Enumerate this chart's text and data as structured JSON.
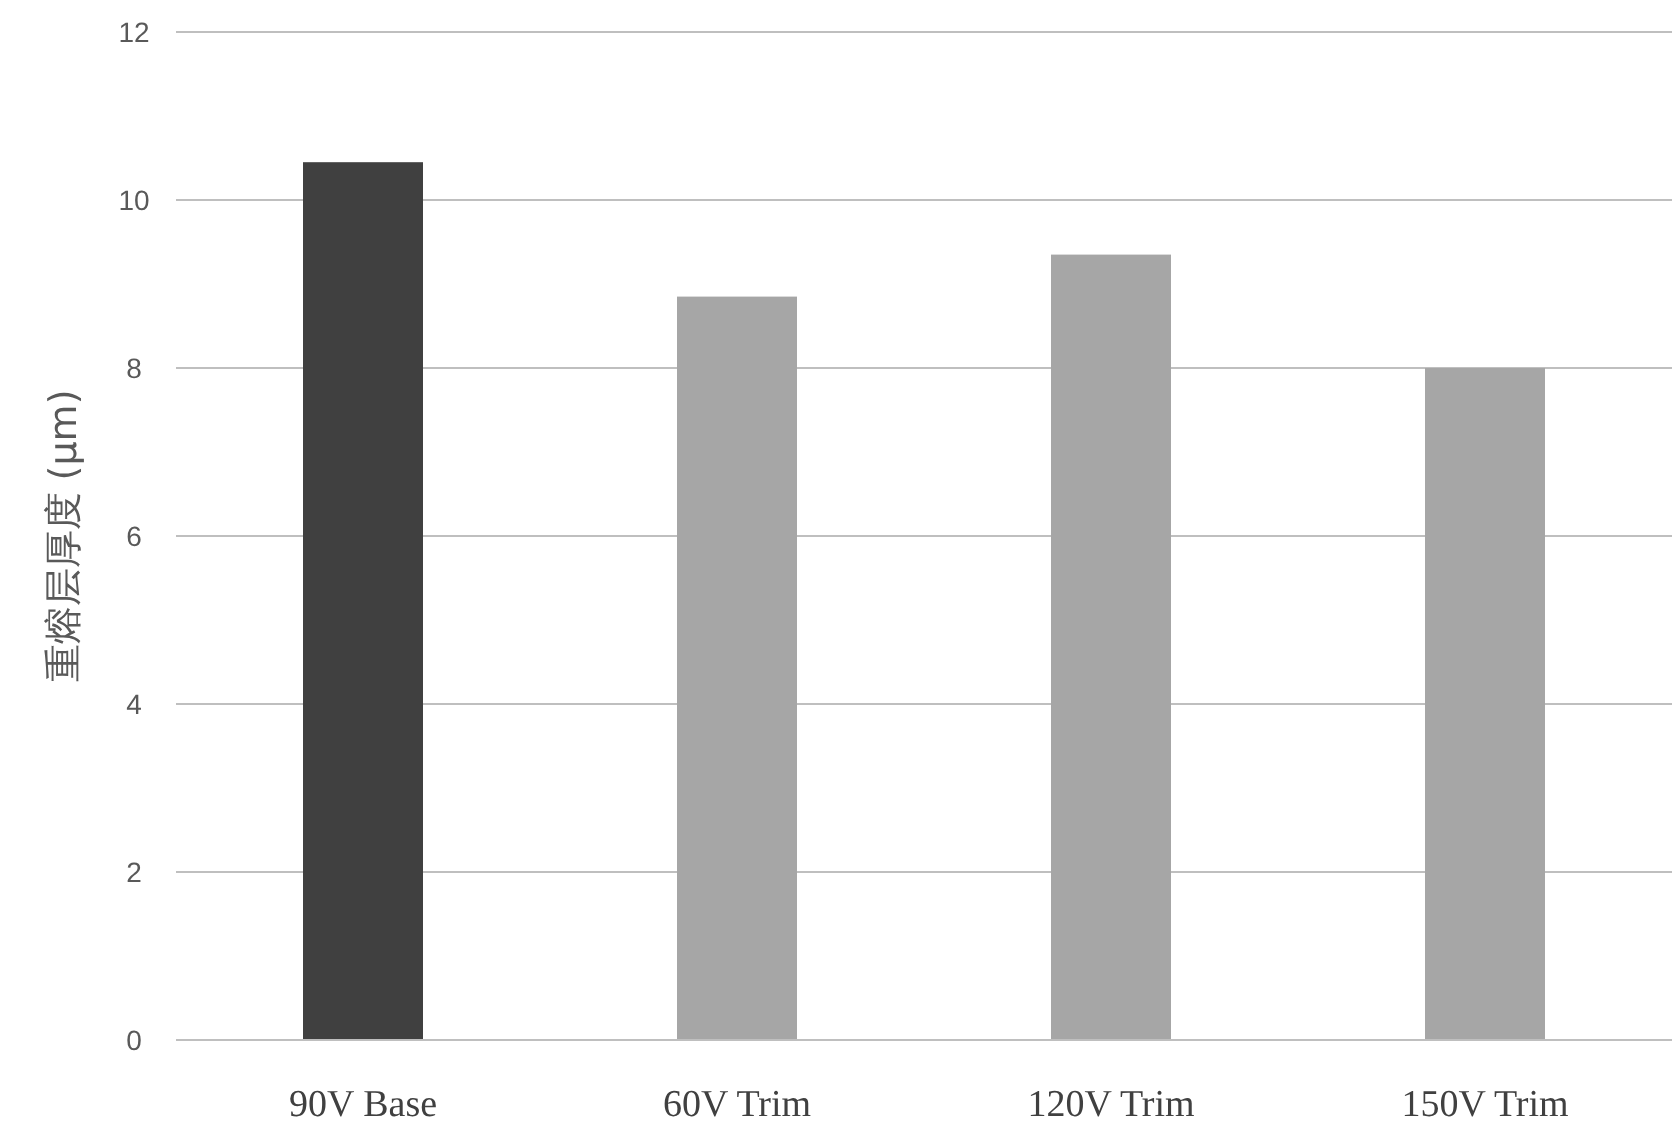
{
  "chart_data": {
    "type": "bar",
    "ylabel": "重熔层厚度 (μm)",
    "categories": [
      "90V Base",
      "60V Trim",
      "120V Trim",
      "150V Trim"
    ],
    "values": [
      10.45,
      8.85,
      9.35,
      8.0
    ],
    "colors": [
      "#404040",
      "#a6a6a6",
      "#a6a6a6",
      "#a6a6a6"
    ],
    "ylim": [
      0,
      12
    ],
    "yticks": [
      0,
      2,
      4,
      6,
      8,
      10,
      12
    ],
    "grid": "y"
  }
}
